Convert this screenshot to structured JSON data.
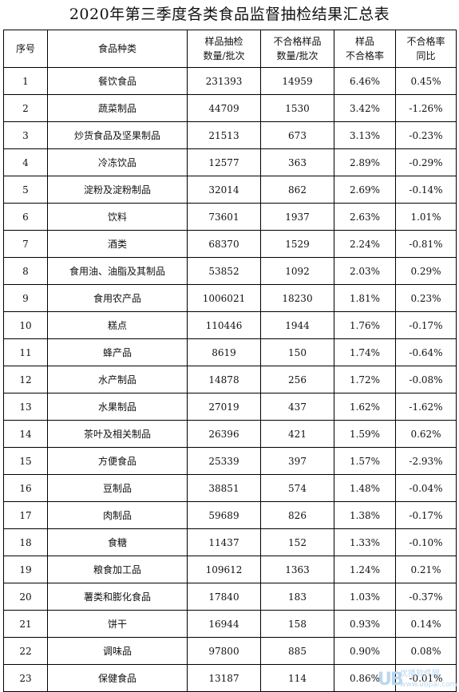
{
  "title": "2020年第三季度各类食品监督抽检结果汇总表",
  "headers": [
    [
      "序号"
    ],
    [
      "食品种类"
    ],
    [
      "样品抽检",
      "数量/批次"
    ],
    [
      "不合格样品",
      "数量/批次"
    ],
    [
      "样品",
      "不合格率"
    ],
    [
      "不合格率",
      "同比"
    ]
  ],
  "rows": [
    [
      "1",
      "餐饮食品",
      "231393",
      "14959",
      "6.46%",
      "0.45%"
    ],
    [
      "2",
      "蔬菜制品",
      "44709",
      "1530",
      "3.42%",
      "-1.26%"
    ],
    [
      "3",
      "炒货食品及坚果制品",
      "21513",
      "673",
      "3.13%",
      "-0.23%"
    ],
    [
      "4",
      "冷冻饮品",
      "12577",
      "363",
      "2.89%",
      "-0.29%"
    ],
    [
      "5",
      "淀粉及淀粉制品",
      "32014",
      "862",
      "2.69%",
      "-0.14%"
    ],
    [
      "6",
      "饮料",
      "73601",
      "1937",
      "2.63%",
      "1.01%"
    ],
    [
      "7",
      "酒类",
      "68370",
      "1529",
      "2.24%",
      "-0.81%"
    ],
    [
      "8",
      "食用油、油脂及其制品",
      "53852",
      "1092",
      "2.03%",
      "0.29%"
    ],
    [
      "9",
      "食用农产品",
      "1006021",
      "18230",
      "1.81%",
      "0.23%"
    ],
    [
      "10",
      "糕点",
      "110446",
      "1944",
      "1.76%",
      "-0.17%"
    ],
    [
      "11",
      "蜂产品",
      "8619",
      "150",
      "1.74%",
      "-0.64%"
    ],
    [
      "12",
      "水产制品",
      "14878",
      "256",
      "1.72%",
      "-0.08%"
    ],
    [
      "13",
      "水果制品",
      "27019",
      "437",
      "1.62%",
      "-1.62%"
    ],
    [
      "14",
      "茶叶及相关制品",
      "26396",
      "421",
      "1.59%",
      "0.62%"
    ],
    [
      "15",
      "方便食品",
      "25339",
      "397",
      "1.57%",
      "-2.93%"
    ],
    [
      "16",
      "豆制品",
      "38851",
      "574",
      "1.48%",
      "-0.04%"
    ],
    [
      "17",
      "肉制品",
      "59689",
      "826",
      "1.38%",
      "-0.17%"
    ],
    [
      "18",
      "食糖",
      "11437",
      "152",
      "1.33%",
      "-0.10%"
    ],
    [
      "19",
      "粮食加工品",
      "109612",
      "1363",
      "1.24%",
      "0.21%"
    ],
    [
      "20",
      "薯类和膨化食品",
      "17840",
      "183",
      "1.03%",
      "-0.37%"
    ],
    [
      "21",
      "饼干",
      "16944",
      "158",
      "0.93%",
      "0.14%"
    ],
    [
      "22",
      "调味品",
      "97800",
      "885",
      "0.90%",
      "0.08%"
    ],
    [
      "23",
      "保健食品",
      "13187",
      "114",
      "0.86%",
      "-0.01%"
    ]
  ],
  "watermark": {
    "logo": "UB",
    "name": "优播软件网",
    "url": "www.ubpai.com"
  }
}
